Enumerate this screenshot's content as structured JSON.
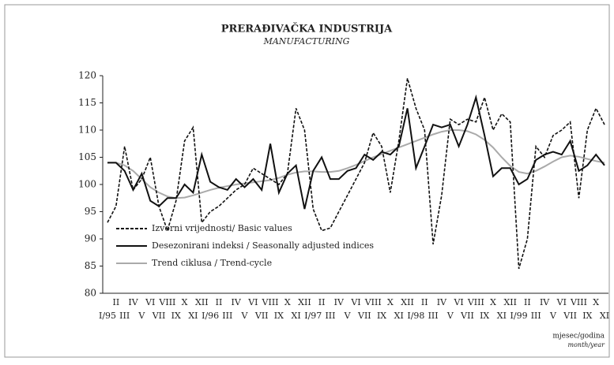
{
  "chart_data": {
    "type": "line",
    "title": "PRERAĐIVAČKA INDUSTRIJA",
    "subtitle": "MANUFACTURING",
    "x_label": "mjesec/godina",
    "x_label_en": "month/year",
    "categories": [
      "I/95",
      "II",
      "III",
      "IV",
      "V",
      "VI",
      "VII",
      "VIII",
      "IX",
      "X",
      "XI",
      "XII",
      "I/96",
      "II",
      "III",
      "IV",
      "V",
      "VI",
      "VII",
      "VIII",
      "IX",
      "X",
      "XI",
      "XII",
      "I/97",
      "II",
      "III",
      "IV",
      "V",
      "VI",
      "VII",
      "VIII",
      "IX",
      "X",
      "XI",
      "XII",
      "I/98",
      "II",
      "III",
      "IV",
      "V",
      "VI",
      "VII",
      "VIII",
      "IX",
      "X",
      "XI",
      "XII",
      "I/99",
      "II",
      "III",
      "IV",
      "V",
      "VI",
      "VII",
      "VIII",
      "IX",
      "X",
      "XI"
    ],
    "series": [
      {
        "name": "Izvorni vrijednosti/ Basic values",
        "color": "#111111",
        "dash": true,
        "values": [
          93,
          96,
          107,
          99,
          101,
          105,
          96,
          91.5,
          97,
          108,
          110.5,
          93,
          95,
          96,
          97.5,
          99,
          100,
          103,
          102,
          101,
          100,
          102,
          114,
          110,
          95.5,
          91.5,
          92,
          95,
          98,
          101,
          104,
          109.5,
          107,
          98.5,
          108,
          119.5,
          114,
          110,
          89,
          98,
          112,
          111,
          112,
          111.5,
          116,
          110,
          113,
          111.5,
          84.5,
          90,
          107,
          105,
          109,
          110,
          111.5,
          97.5,
          110,
          114,
          111
        ]
      },
      {
        "name": "Desezonirani indeksi / Seasonally adjusted indices",
        "color": "#111111",
        "dash": false,
        "values": [
          104,
          104,
          102.5,
          99,
          102,
          97,
          96,
          97.5,
          97.5,
          100,
          98.5,
          105.5,
          100.5,
          99.5,
          99,
          101,
          99.5,
          101,
          99,
          107.5,
          98.5,
          102,
          103.5,
          95.5,
          102.5,
          105,
          101,
          101,
          102.5,
          103,
          105.5,
          104.5,
          106,
          105.5,
          107,
          114,
          103,
          107,
          111,
          110.5,
          111,
          107,
          111,
          116,
          109,
          101.5,
          103,
          103,
          100,
          101,
          104.5,
          105.5,
          106,
          105.5,
          108,
          102.5,
          103.5,
          105.5,
          103.5
        ]
      },
      {
        "name": "Trend ciklusa / Trend-cycle",
        "color": "#aaaaaa",
        "dash": false,
        "values": [
          104,
          104,
          103.5,
          102.5,
          101,
          99.5,
          98.5,
          97.8,
          97.5,
          97.6,
          98,
          98.5,
          99,
          99.4,
          99.7,
          100,
          100.2,
          100.4,
          100.6,
          100.8,
          101.2,
          101.8,
          102.2,
          102.4,
          102.4,
          102.3,
          102.3,
          102.5,
          103,
          103.6,
          104.3,
          105,
          105.6,
          106.2,
          106.8,
          107.4,
          108,
          108.6,
          109.2,
          109.7,
          110,
          110,
          109.8,
          109.2,
          108.2,
          106.8,
          105,
          103.4,
          102.3,
          102,
          102.5,
          103.3,
          104.2,
          105,
          105.3,
          105.1,
          104.7,
          104.3,
          104
        ]
      }
    ],
    "ylim": [
      80,
      120
    ],
    "yticks": [
      80,
      85,
      90,
      95,
      100,
      105,
      110,
      115,
      120
    ]
  }
}
